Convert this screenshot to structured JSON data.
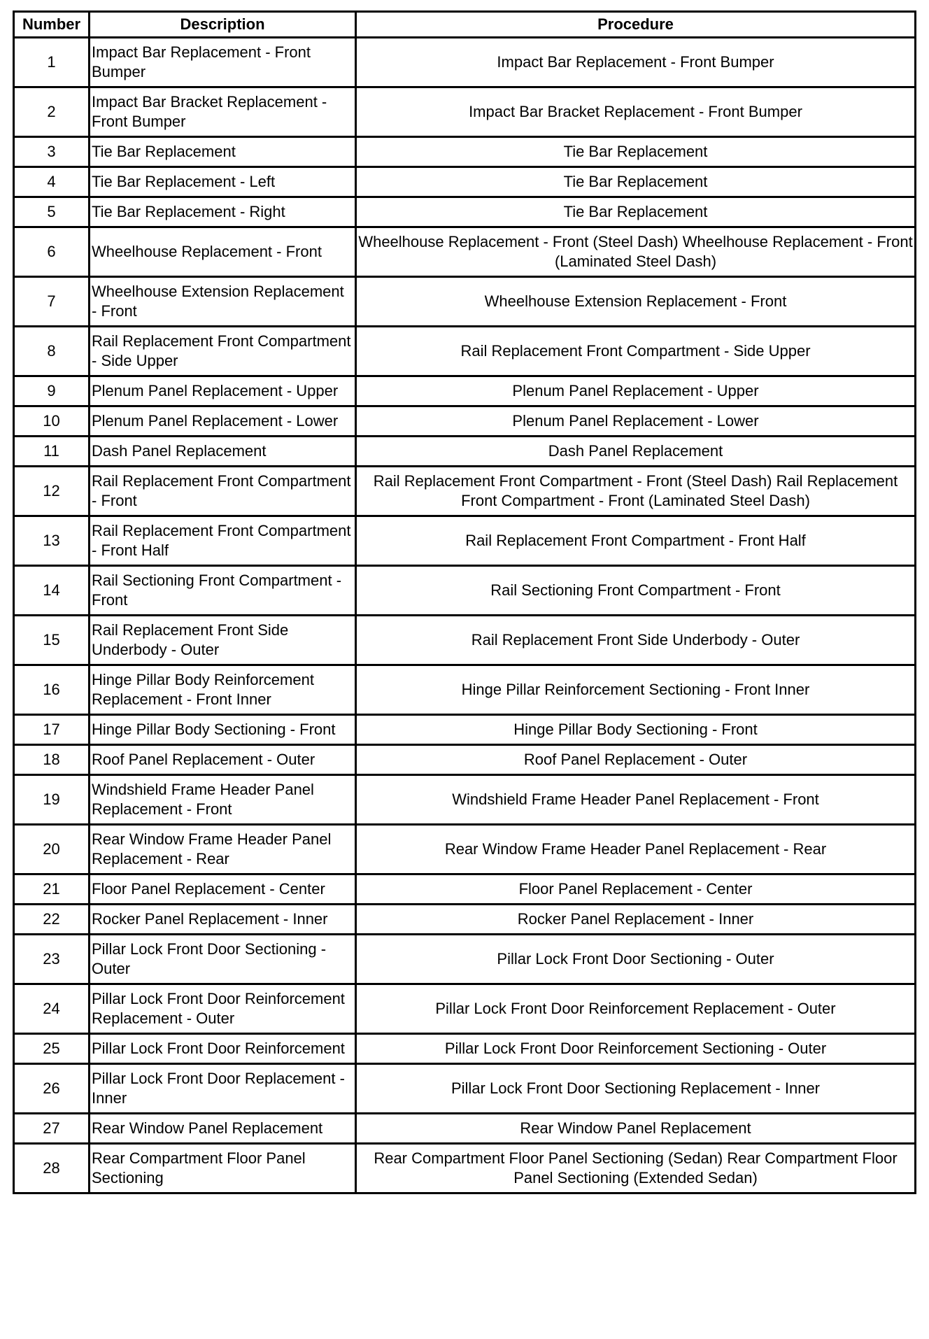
{
  "headers": {
    "number": "Number",
    "description": "Description",
    "procedure": "Procedure"
  },
  "rows": [
    {
      "number": "1",
      "description": "Impact Bar Replacement - Front Bumper",
      "procedure": "Impact Bar Replacement - Front Bumper"
    },
    {
      "number": "2",
      "description": "Impact Bar Bracket Replacement - Front Bumper",
      "procedure": "Impact Bar Bracket Replacement - Front Bumper"
    },
    {
      "number": "3",
      "description": "Tie Bar Replacement",
      "procedure": "Tie Bar Replacement"
    },
    {
      "number": "4",
      "description": "Tie Bar Replacement - Left",
      "procedure": "Tie Bar Replacement"
    },
    {
      "number": "5",
      "description": "Tie Bar Replacement - Right",
      "procedure": "Tie Bar Replacement"
    },
    {
      "number": "6",
      "description": "Wheelhouse Replacement - Front",
      "procedure": "Wheelhouse Replacement - Front (Steel Dash) Wheelhouse Replacement - Front (Laminated Steel Dash)"
    },
    {
      "number": "7",
      "description": "Wheelhouse Extension Replacement - Front",
      "procedure": "Wheelhouse Extension Replacement - Front"
    },
    {
      "number": "8",
      "description": "Rail Replacement Front Compartment - Side Upper",
      "procedure": "Rail Replacement Front Compartment - Side Upper"
    },
    {
      "number": "9",
      "description": "Plenum Panel Replacement - Upper",
      "procedure": "Plenum Panel Replacement - Upper"
    },
    {
      "number": "10",
      "description": "Plenum Panel Replacement - Lower",
      "procedure": "Plenum Panel Replacement - Lower"
    },
    {
      "number": "11",
      "description": "Dash Panel Replacement",
      "procedure": "Dash Panel Replacement"
    },
    {
      "number": "12",
      "description": "Rail Replacement Front Compartment - Front",
      "procedure": "Rail Replacement Front Compartment - Front (Steel Dash) Rail Replacement Front Compartment - Front (Laminated Steel Dash)"
    },
    {
      "number": "13",
      "description": "Rail Replacement Front Compartment - Front Half",
      "procedure": "Rail Replacement Front Compartment - Front Half"
    },
    {
      "number": "14",
      "description": "Rail Sectioning Front Compartment - Front",
      "procedure": "Rail Sectioning Front Compartment - Front"
    },
    {
      "number": "15",
      "description": "Rail Replacement Front Side Underbody - Outer",
      "procedure": "Rail Replacement Front Side Underbody - Outer"
    },
    {
      "number": "16",
      "description": "Hinge Pillar Body Reinforcement Replacement - Front Inner",
      "procedure": "Hinge Pillar Reinforcement Sectioning - Front Inner"
    },
    {
      "number": "17",
      "description": "Hinge Pillar Body Sectioning - Front",
      "procedure": "Hinge Pillar Body Sectioning - Front"
    },
    {
      "number": "18",
      "description": "Roof Panel Replacement - Outer",
      "procedure": "Roof Panel Replacement - Outer"
    },
    {
      "number": "19",
      "description": "Windshield Frame Header Panel Replacement - Front",
      "procedure": "Windshield Frame Header Panel Replacement - Front"
    },
    {
      "number": "20",
      "description": "Rear Window Frame Header Panel Replacement - Rear",
      "procedure": "Rear Window Frame Header Panel Replacement - Rear"
    },
    {
      "number": "21",
      "description": "Floor Panel Replacement - Center",
      "procedure": "Floor Panel Replacement - Center"
    },
    {
      "number": "22",
      "description": "Rocker Panel Replacement - Inner",
      "procedure": "Rocker Panel Replacement - Inner"
    },
    {
      "number": "23",
      "description": "Pillar Lock Front Door Sectioning - Outer",
      "procedure": "Pillar Lock Front Door Sectioning - Outer"
    },
    {
      "number": "24",
      "description": "Pillar Lock Front Door Reinforcement Replacement - Outer",
      "procedure": "Pillar Lock Front Door Reinforcement Replacement - Outer"
    },
    {
      "number": "25",
      "description": "Pillar Lock Front Door Reinforcement",
      "procedure": "Pillar Lock Front Door Reinforcement Sectioning - Outer"
    },
    {
      "number": "26",
      "description": "Pillar Lock Front Door Replacement - Inner",
      "procedure": "Pillar Lock Front Door Sectioning Replacement - Inner"
    },
    {
      "number": "27",
      "description": "Rear Window Panel Replacement",
      "procedure": "Rear Window Panel Replacement"
    },
    {
      "number": "28",
      "description": "Rear Compartment Floor Panel Sectioning",
      "procedure": "Rear Compartment Floor Panel Sectioning (Sedan) Rear Compartment Floor Panel Sectioning (Extended Sedan)"
    }
  ]
}
